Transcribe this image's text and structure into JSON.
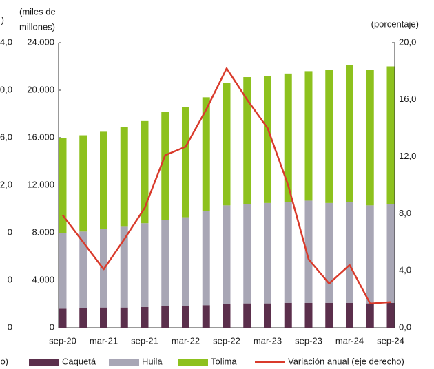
{
  "chart_data": {
    "type": "stacked_bar_line",
    "y_label": [
      "(miles de",
      "millones)"
    ],
    "y2_label": "(porcentaje)",
    "cropped_texts": [
      ")",
      "o)"
    ],
    "categories": [
      "sep-20",
      null,
      "mar-21",
      null,
      "sep-21",
      null,
      "mar-22",
      null,
      "sep-22",
      null,
      "mar-23",
      null,
      "sep-23",
      null,
      "mar-24",
      null,
      "sep-24"
    ],
    "series": [
      {
        "name": "Caquetá",
        "color": "#5b2f4c",
        "kind": "bar",
        "values": [
          1600,
          1650,
          1700,
          1700,
          1750,
          1800,
          1850,
          1900,
          2000,
          2050,
          2050,
          2100,
          2100,
          2100,
          2100,
          2050,
          2100
        ]
      },
      {
        "name": "Huila",
        "color": "#a8a6b5",
        "kind": "bar",
        "values": [
          6400,
          6450,
          6600,
          6800,
          7050,
          7300,
          7450,
          7900,
          8300,
          8350,
          8450,
          8500,
          8600,
          8400,
          8500,
          8250,
          8300
        ]
      },
      {
        "name": "Tolima",
        "color": "#8dc11e",
        "kind": "bar",
        "values": [
          8000,
          8100,
          8200,
          8400,
          8600,
          9100,
          9300,
          9600,
          10300,
          10700,
          10700,
          10800,
          10900,
          11200,
          11500,
          11400,
          11600
        ]
      },
      {
        "name": "Variación anual (eje derecho)",
        "color": "#d93a2b",
        "kind": "line",
        "axis": "y2",
        "values": [
          7.9,
          6.0,
          4.1,
          6.2,
          8.4,
          12.1,
          12.7,
          15.3,
          18.2,
          16.0,
          14.0,
          10.0,
          4.8,
          3.1,
          4.4,
          1.7,
          1.8
        ]
      }
    ],
    "ylim": [
      0,
      24000
    ],
    "yticks": [
      {
        "value": 0,
        "label": "0"
      },
      {
        "value": 4000,
        "label": "4.000"
      },
      {
        "value": 8000,
        "label": "8.000"
      },
      {
        "value": 12000,
        "label": "12.000"
      },
      {
        "value": 16000,
        "label": "16.000"
      },
      {
        "value": 20000,
        "label": "20.000"
      },
      {
        "value": 24000,
        "label": "24.000"
      }
    ],
    "y2lim": [
      0,
      20
    ],
    "y2ticks": [
      {
        "value": 0,
        "label": "0,0"
      },
      {
        "value": 4,
        "label": "4,0"
      },
      {
        "value": 8,
        "label": "8,0"
      },
      {
        "value": 12,
        "label": "12,0"
      },
      {
        "value": 16,
        "label": "16,0"
      },
      {
        "value": 20,
        "label": "20,0"
      }
    ],
    "y3lim": [
      0,
      24
    ],
    "y3ticks": [
      {
        "value": 0,
        "label": "0"
      },
      {
        "value": 4,
        "label": "0"
      },
      {
        "value": 8,
        "label": "0"
      },
      {
        "value": 12,
        "label": "2,0"
      },
      {
        "value": 16,
        "label": "6,0"
      },
      {
        "value": 20,
        "label": "0,0"
      },
      {
        "value": 24,
        "label": "4,0"
      }
    ]
  }
}
